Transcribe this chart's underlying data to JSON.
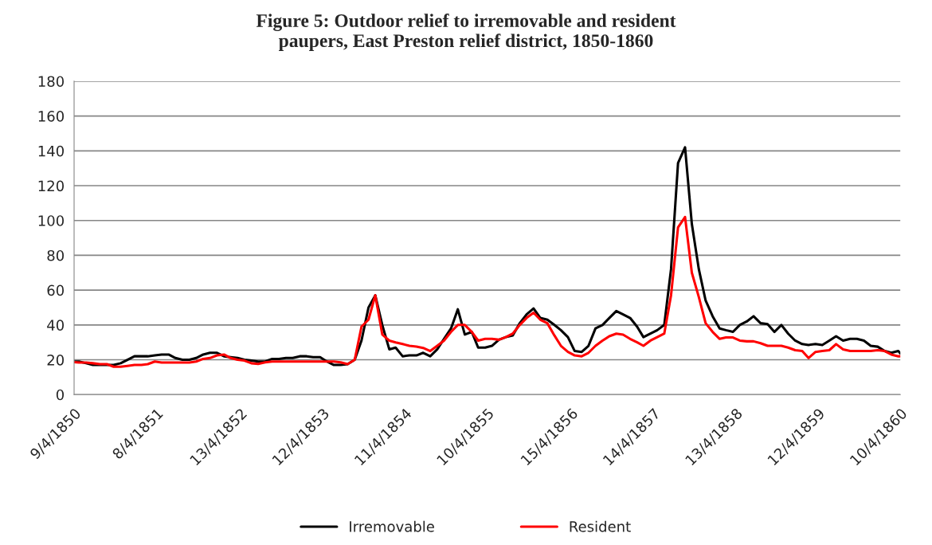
{
  "chart_data": {
    "type": "line",
    "title": "Figure 5: Outdoor relief to irremovable and resident\npaupers, East Preston relief district, 1850-1860",
    "x": [
      "1850-04-09",
      "1850-05",
      "1850-06",
      "1850-07",
      "1850-08",
      "1850-09",
      "1850-10",
      "1850-11",
      "1850-12",
      "1851-01",
      "1851-02",
      "1851-03",
      "1851-04",
      "1851-05",
      "1851-06",
      "1851-07",
      "1851-08",
      "1851-09",
      "1851-10",
      "1851-11",
      "1851-12",
      "1852-01",
      "1852-02",
      "1852-03",
      "1852-04",
      "1852-05",
      "1852-06",
      "1852-07",
      "1852-08",
      "1852-09",
      "1852-10",
      "1852-11",
      "1852-12",
      "1853-01",
      "1853-02",
      "1853-03",
      "1853-04",
      "1853-05",
      "1853-06",
      "1853-07",
      "1853-08",
      "1853-09",
      "1853-10",
      "1853-11",
      "1853-12",
      "1854-01",
      "1854-02",
      "1854-03",
      "1854-04",
      "1854-05",
      "1854-06",
      "1854-07",
      "1854-08",
      "1854-09",
      "1854-10",
      "1854-11",
      "1854-12",
      "1855-01",
      "1855-02",
      "1855-03",
      "1855-04",
      "1855-05",
      "1855-06",
      "1855-07",
      "1855-08",
      "1855-09",
      "1855-10",
      "1855-11",
      "1855-12",
      "1856-01",
      "1856-02",
      "1856-03",
      "1856-04",
      "1856-05",
      "1856-06",
      "1856-07",
      "1856-08",
      "1856-09",
      "1856-10",
      "1856-11",
      "1856-12",
      "1857-01",
      "1857-02",
      "1857-03",
      "1857-04",
      "1857-05",
      "1857-06",
      "1857-07",
      "1857-08",
      "1857-09",
      "1857-10",
      "1857-11",
      "1857-12",
      "1858-01",
      "1858-02",
      "1858-03",
      "1858-04",
      "1858-05",
      "1858-06",
      "1858-07",
      "1858-08",
      "1858-09",
      "1858-10",
      "1858-11",
      "1858-12",
      "1859-01",
      "1859-02",
      "1859-03",
      "1859-04",
      "1859-05",
      "1859-06",
      "1859-07",
      "1859-08",
      "1859-09",
      "1859-10",
      "1859-11",
      "1859-12",
      "1860-01",
      "1860-02",
      "1860-03",
      "1860-04",
      "1860-04-10"
    ],
    "series": [
      {
        "name": "Irremovable",
        "color": "#000000",
        "values": [
          19,
          19,
          18,
          17,
          17,
          17,
          17,
          18,
          20,
          22,
          22,
          22,
          22.5,
          23,
          23,
          21,
          20,
          20,
          21,
          23,
          24,
          24,
          22,
          21.5,
          21,
          20,
          19.5,
          19,
          19,
          20.5,
          20.5,
          21,
          21,
          22,
          22,
          21.5,
          21.5,
          19,
          17,
          17,
          17.5,
          20,
          31,
          50,
          57,
          40,
          26,
          27,
          22,
          22.5,
          22.5,
          24,
          22,
          26,
          32,
          38,
          49,
          34.5,
          36,
          27,
          27,
          28,
          31.5,
          33,
          34,
          41,
          46,
          49.5,
          44,
          43,
          40,
          37,
          33,
          25,
          24.5,
          28,
          38,
          40,
          44,
          48,
          46,
          44,
          39,
          33,
          35,
          37,
          40,
          72,
          133,
          142,
          98,
          72,
          54,
          45,
          38,
          37,
          36,
          40,
          42,
          45,
          41,
          40.5,
          36,
          40,
          35,
          31,
          29,
          28.5,
          29,
          28.5,
          31,
          33.5,
          31,
          32,
          32,
          31,
          28,
          27.5,
          25,
          24,
          25,
          23.7
        ]
      },
      {
        "name": "Resident",
        "color": "#ff0000",
        "values": [
          18.6,
          18.4,
          18.4,
          18,
          17.5,
          17.5,
          16,
          16,
          16.5,
          17,
          17,
          17.5,
          19,
          18.4,
          18.4,
          18.4,
          18.4,
          18.4,
          19,
          20.5,
          21,
          22.5,
          23,
          21,
          20,
          19.5,
          18,
          17.6,
          18.5,
          19,
          19,
          19,
          19,
          19,
          19,
          19,
          19,
          19,
          19,
          18.5,
          17.5,
          20,
          39,
          43,
          57,
          34.5,
          31,
          30,
          29,
          28,
          27.6,
          26.8,
          25,
          28,
          31,
          36,
          40,
          40,
          36,
          31,
          32,
          32,
          31.5,
          33,
          35,
          40,
          44,
          47,
          43,
          41,
          34,
          28,
          24.5,
          22.5,
          22,
          24,
          28,
          31,
          33.5,
          35,
          34.4,
          32,
          30,
          28,
          31,
          33,
          35,
          57,
          96,
          102,
          70,
          56,
          41,
          36,
          32,
          32.8,
          32.8,
          31,
          30.6,
          30.6,
          29.5,
          28,
          28,
          28,
          27,
          25.5,
          25,
          21,
          24.5,
          25,
          25.5,
          29,
          26,
          25,
          25,
          25,
          25,
          25.5,
          25,
          23,
          22,
          22
        ]
      }
    ],
    "xlim": [
      "1850-04-09",
      "1860-04-10"
    ],
    "xticks": [
      {
        "value": "1850-04-09",
        "label": "9/4/1850"
      },
      {
        "value": "1851-04-08",
        "label": "8/4/1851"
      },
      {
        "value": "1852-04-13",
        "label": "13/4/1852"
      },
      {
        "value": "1853-04-12",
        "label": "12/4/1853"
      },
      {
        "value": "1854-04-11",
        "label": "11/4/1854"
      },
      {
        "value": "1855-04-10",
        "label": "10/4/1855"
      },
      {
        "value": "1856-04-15",
        "label": "15/4/1856"
      },
      {
        "value": "1857-04-14",
        "label": "14/4/1857"
      },
      {
        "value": "1858-04-13",
        "label": "13/4/1858"
      },
      {
        "value": "1859-04-12",
        "label": "12/4/1859"
      },
      {
        "value": "1860-04-10",
        "label": "10/4/1860"
      }
    ],
    "ylim": [
      0,
      180
    ],
    "yticks": [
      0,
      20,
      40,
      60,
      80,
      100,
      120,
      140,
      160,
      180
    ],
    "grid": "y",
    "legend": "bottom",
    "marker": "none",
    "line_style": "solid"
  }
}
